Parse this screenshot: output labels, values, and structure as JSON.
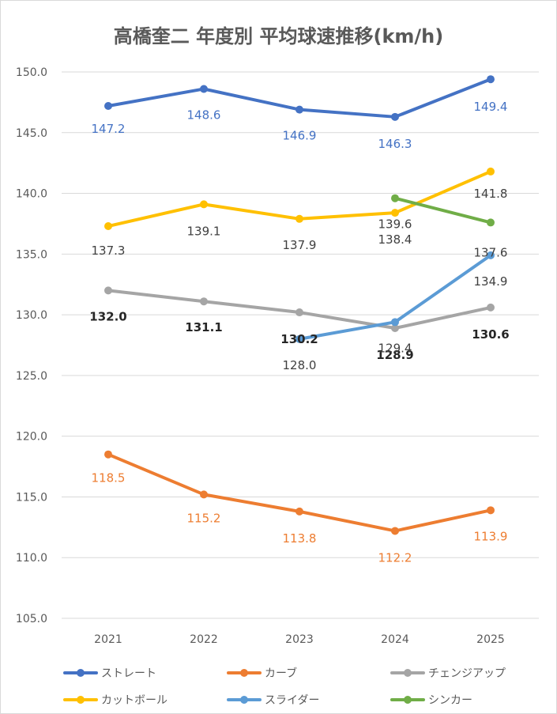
{
  "chart_data": {
    "type": "line",
    "title": "高橋奎二 年度別 平均球速推移(km/h)",
    "xlabel": "",
    "ylabel": "",
    "categories": [
      "2021",
      "2022",
      "2023",
      "2024",
      "2025"
    ],
    "y_ticks": [
      "105.0",
      "110.0",
      "115.0",
      "120.0",
      "125.0",
      "130.0",
      "135.0",
      "140.0",
      "145.0",
      "150.0"
    ],
    "ylim": [
      105,
      150
    ],
    "grid": true,
    "legend_position": "bottom",
    "series": [
      {
        "name": "ストレート",
        "color": "#4472c4",
        "values": [
          147.2,
          148.6,
          146.9,
          146.3,
          149.4
        ],
        "labels": [
          "147.2",
          "148.6",
          "146.9",
          "146.3",
          "149.4"
        ],
        "label_color": "#4472c4",
        "label_bold": false
      },
      {
        "name": "カーブ",
        "color": "#ed7d31",
        "values": [
          118.5,
          115.2,
          113.8,
          112.2,
          113.9
        ],
        "labels": [
          "118.5",
          "115.2",
          "113.8",
          "112.2",
          "113.9"
        ],
        "label_color": "#ed7d31",
        "label_bold": false
      },
      {
        "name": "チェンジアップ",
        "color": "#a5a5a5",
        "values": [
          132.0,
          131.1,
          130.2,
          128.9,
          130.6
        ],
        "labels": [
          "132.0",
          "131.1",
          "130.2",
          "128.9",
          "130.6"
        ],
        "label_color": "#262626",
        "label_bold": true
      },
      {
        "name": "カットボール",
        "color": "#ffc000",
        "values": [
          137.3,
          139.1,
          137.9,
          138.4,
          141.8
        ],
        "labels": [
          "137.3",
          "139.1",
          "137.9",
          "138.4",
          "141.8"
        ],
        "label_color": "#404040",
        "label_bold": false
      },
      {
        "name": "スライダー",
        "color": "#5b9bd5",
        "values": [
          null,
          null,
          128.0,
          129.4,
          134.9
        ],
        "labels": [
          null,
          null,
          "128.0",
          "129.4",
          "134.9"
        ],
        "label_color": "#404040",
        "label_bold": false
      },
      {
        "name": "シンカー",
        "color": "#70ad47",
        "values": [
          null,
          null,
          null,
          139.6,
          137.6
        ],
        "labels": [
          null,
          null,
          null,
          "139.6",
          "137.6"
        ],
        "label_color": "#404040",
        "label_bold": false
      }
    ]
  }
}
